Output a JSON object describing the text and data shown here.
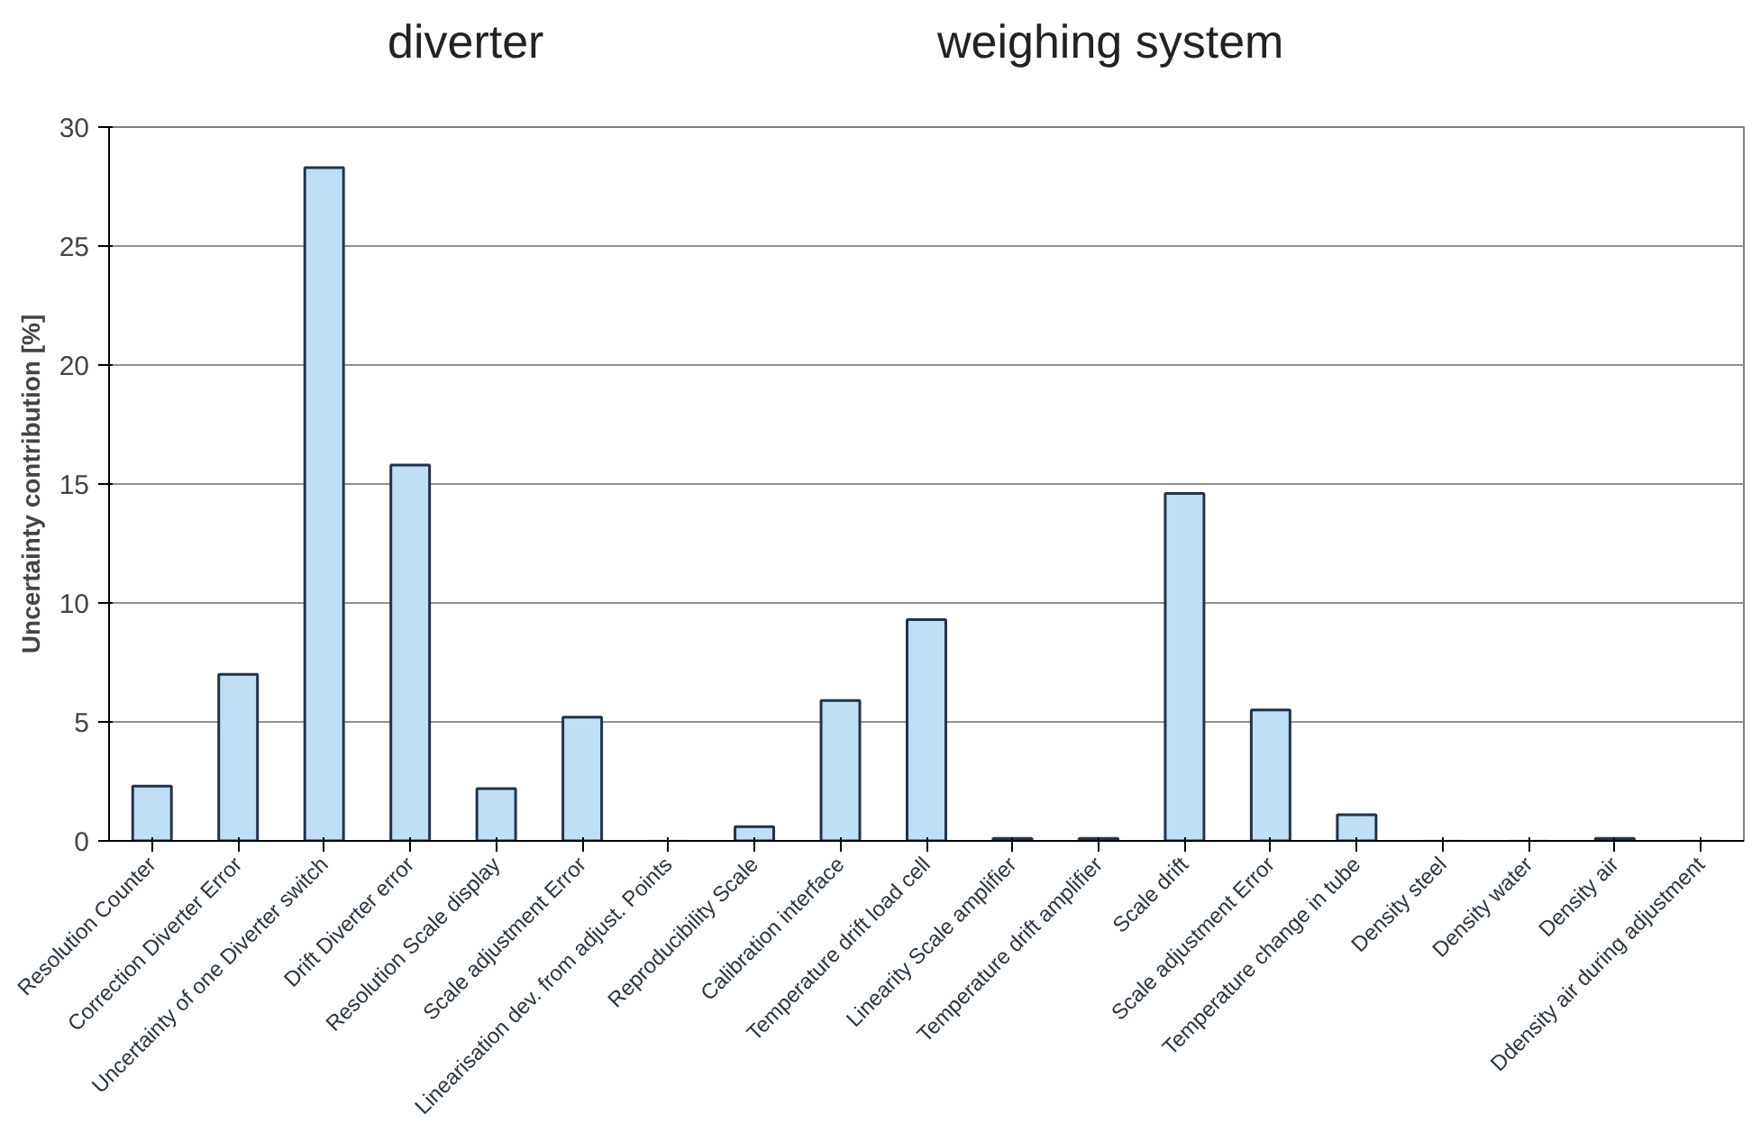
{
  "chart_data": {
    "type": "bar",
    "ylabel": "Uncertainty contribution [%]",
    "annotations": [
      "diverter",
      "weighing system"
    ],
    "categories": [
      "Resolution Counter",
      "Correction Diverter Error",
      "Uncertainty of one Diverter switch",
      "Drift Diverter error",
      "Resolution Scale display",
      "Scale adjustment Error",
      "Linearisation dev. from adjust. Points",
      "Reproducibility Scale",
      "Calibration interface",
      "Temperature drift load cell",
      "Linearity Scale amplifier",
      "Temperature drift amplifier",
      "Scale drift",
      "Scale adjustment Error",
      "Temperature change in tube",
      "Density steel",
      "Density water",
      "Density air",
      "Ddensity air during adjustment"
    ],
    "values": [
      2.3,
      7.0,
      28.3,
      15.8,
      2.2,
      5.2,
      0,
      0.6,
      5.9,
      9.3,
      0.1,
      0.1,
      14.6,
      5.5,
      1.1,
      0,
      0,
      0.1,
      0
    ],
    "color": "#bfdff7",
    "ylim": [
      0,
      30
    ],
    "yticks": [
      0,
      5,
      10,
      15,
      20,
      25,
      30
    ],
    "grid": "y"
  }
}
